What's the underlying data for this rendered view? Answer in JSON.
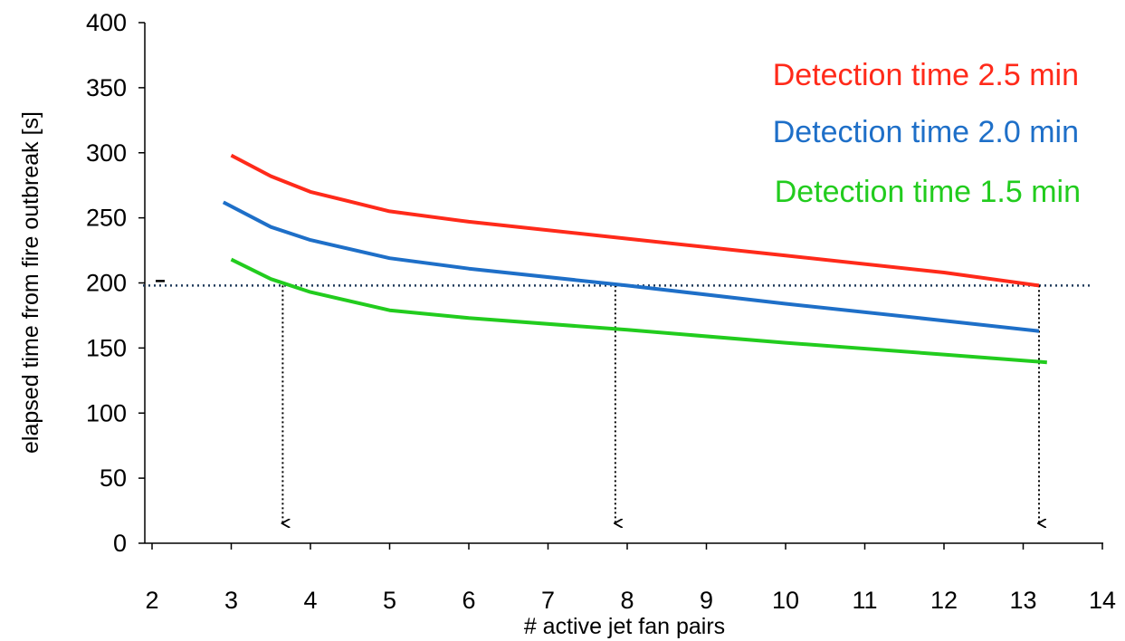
{
  "chart_data": {
    "type": "line",
    "xlabel": "# active jet fan pairs",
    "ylabel": "elapsed time from fire outbreak [s]",
    "xlim": [
      2,
      14
    ],
    "ylim": [
      0,
      400
    ],
    "xticks": [
      2,
      3,
      4,
      5,
      6,
      7,
      8,
      9,
      10,
      11,
      12,
      13,
      14
    ],
    "yticks": [
      0,
      50,
      100,
      150,
      200,
      250,
      300,
      350,
      400
    ],
    "grid": false,
    "legend_position": "top-right",
    "series": [
      {
        "name": "Detection time 2.5 min",
        "color": "#ff2a1a",
        "points": [
          [
            3.0,
            298
          ],
          [
            3.5,
            282
          ],
          [
            4.0,
            270
          ],
          [
            5.0,
            255
          ],
          [
            6.0,
            247
          ],
          [
            8.0,
            234
          ],
          [
            10.0,
            221
          ],
          [
            12.0,
            208
          ],
          [
            13.2,
            198
          ]
        ]
      },
      {
        "name": "Detection time 2.0 min",
        "color": "#1e6fc8",
        "points": [
          [
            2.9,
            262
          ],
          [
            3.5,
            243
          ],
          [
            4.0,
            233
          ],
          [
            5.0,
            219
          ],
          [
            6.0,
            211
          ],
          [
            8.0,
            198
          ],
          [
            10.0,
            184
          ],
          [
            12.0,
            171
          ],
          [
            13.2,
            163
          ]
        ]
      },
      {
        "name": "Detection time 1.5 min",
        "color": "#22cc1e",
        "points": [
          [
            3.0,
            218
          ],
          [
            3.5,
            203
          ],
          [
            4.0,
            193
          ],
          [
            5.0,
            179
          ],
          [
            6.0,
            173
          ],
          [
            8.0,
            164
          ],
          [
            10.0,
            154
          ],
          [
            12.0,
            145
          ],
          [
            13.3,
            139
          ]
        ]
      }
    ],
    "annotations": {
      "reference_line_y": 198,
      "reference_line_color": "#1f3a5a",
      "drop_arrows_x": [
        3.65,
        7.85,
        13.2
      ]
    }
  }
}
